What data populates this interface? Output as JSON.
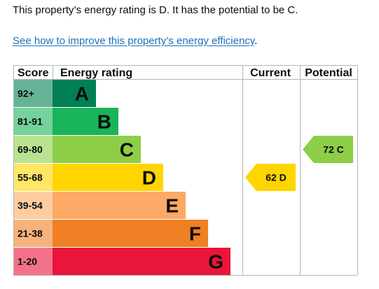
{
  "summary": "This property’s energy rating is D. It has the potential to be C.",
  "improve_link": {
    "label": "See how to improve this property’s energy efficiency",
    "suffix": "."
  },
  "chart_data": {
    "type": "table",
    "columns": {
      "score": "Score",
      "rating": "Energy rating",
      "current": "Current",
      "potential": "Potential"
    },
    "bands": [
      {
        "letter": "A",
        "range": "92+",
        "color": "#008054",
        "score_bg": "#66b398"
      },
      {
        "letter": "B",
        "range": "81-91",
        "color": "#19b459",
        "score_bg": "#75d29b"
      },
      {
        "letter": "C",
        "range": "69-80",
        "color": "#8dce46",
        "score_bg": "#bbe290"
      },
      {
        "letter": "D",
        "range": "55-68",
        "color": "#ffd500",
        "score_bg": "#ffe666"
      },
      {
        "letter": "E",
        "range": "39-54",
        "color": "#fcaa65",
        "score_bg": "#fdcca3"
      },
      {
        "letter": "F",
        "range": "21-38",
        "color": "#ef8023",
        "score_bg": "#f5b37b"
      },
      {
        "letter": "G",
        "range": "1-20",
        "color": "#e9153b",
        "score_bg": "#f27389"
      }
    ],
    "current": {
      "value": 62,
      "letter": "D",
      "label": "62 D",
      "color": "#ffd500"
    },
    "potential": {
      "value": 72,
      "letter": "C",
      "label": "72 C",
      "color": "#8dce46"
    }
  },
  "colors": {
    "text": "#0b0c0c",
    "link": "#1d70b8",
    "grid": "#b1b4b6"
  }
}
